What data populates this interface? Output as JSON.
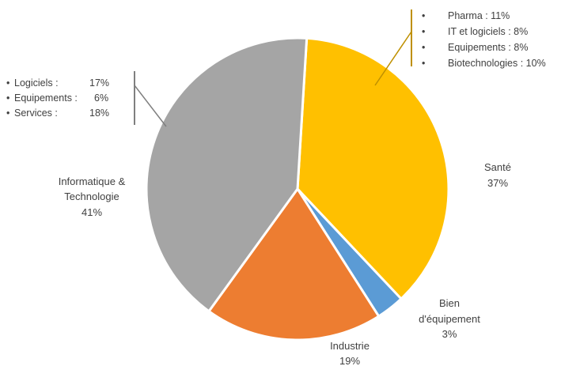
{
  "chart_data": {
    "type": "pie",
    "slices": [
      {
        "name": "Santé",
        "value": 37,
        "label": "37%",
        "color": "#FFC000"
      },
      {
        "name": "Bien d'équipement",
        "value": 3,
        "label": "3%",
        "color": "#5B9BD5"
      },
      {
        "name": "Industrie",
        "value": 19,
        "label": "19%",
        "color": "#ED7D31"
      },
      {
        "name": "Informatique & Technologie",
        "value": 41,
        "label": "41%",
        "color": "#A5A5A5"
      }
    ],
    "label_lines": {
      "sante": [
        "Santé",
        "37%"
      ],
      "bien": [
        "Bien",
        "d'équipement",
        "3%"
      ],
      "industrie": [
        "Industrie",
        "19%"
      ],
      "info": [
        "Informatique &",
        "Technologie",
        "41%"
      ]
    },
    "annotations": {
      "sante": {
        "bullet": "•",
        "items": [
          "Pharma : 11%",
          "IT et logiciels : 8%",
          "Equipements : 8%",
          "Biotechnologies : 10%"
        ],
        "line_color": "#BF9000"
      },
      "info": {
        "bullet": "•",
        "items": [
          {
            "name": "Logiciels :",
            "value": "17%"
          },
          {
            "name": "Equipements :",
            "value": "6%"
          },
          {
            "name": "Services :",
            "value": "18%"
          }
        ],
        "line_color": "#7F7F7F"
      }
    }
  }
}
